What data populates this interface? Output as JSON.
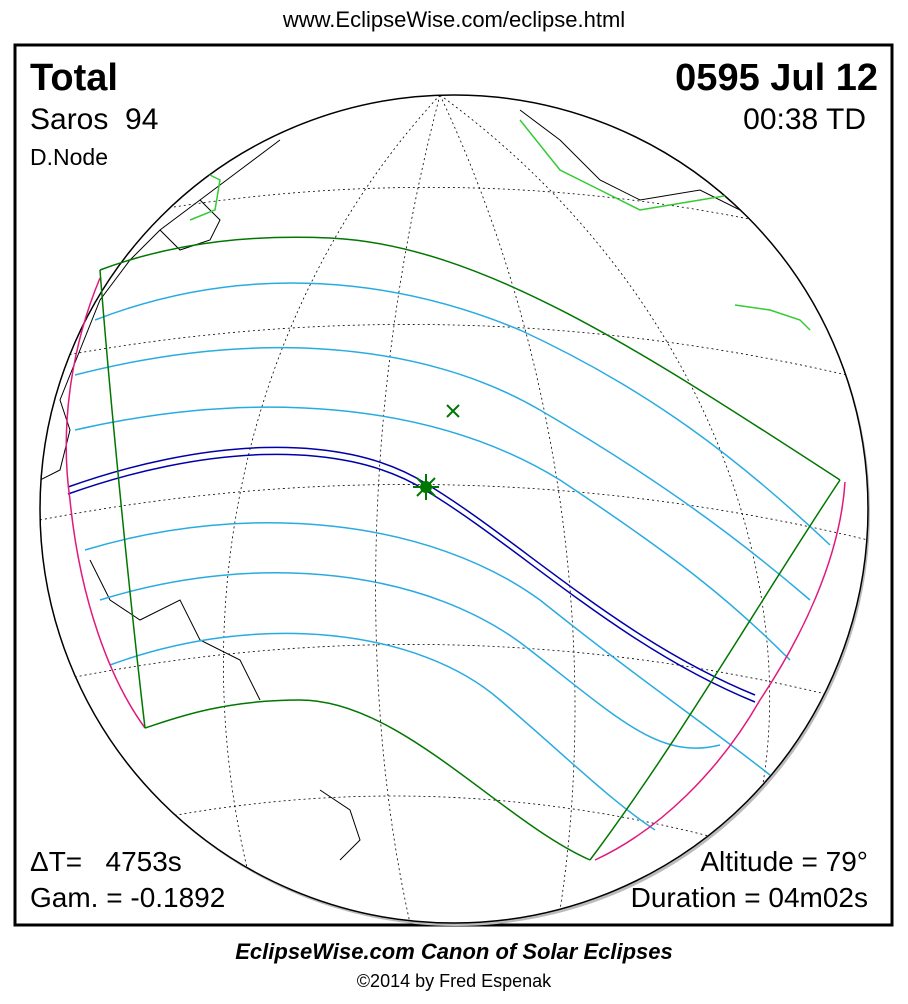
{
  "header": {
    "url": "www.EclipseWise.com/eclipse.html"
  },
  "eclipse": {
    "type": "Total",
    "saros": "Saros  94",
    "node": "D.Node",
    "date": "0595 Jul 12",
    "time": "00:38 TD",
    "delta_t": "ΔT=   4753s",
    "gamma": "Gam. = -0.1892",
    "altitude": "Altitude = 79°",
    "duration": "Duration = 04m02s"
  },
  "footer": {
    "title": "EclipseWise.com Canon of Solar Eclipses",
    "copyright": "©2014 by Fred Espenak"
  }
}
